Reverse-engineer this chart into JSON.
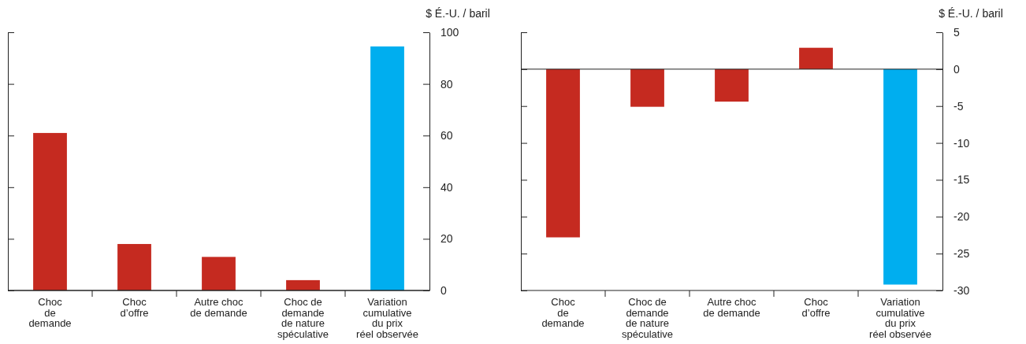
{
  "chart_data": [
    {
      "type": "bar",
      "ylabel": "$ É.-U. / baril",
      "categories": [
        "Choc\nde\ndemande",
        "Choc\nd’offre",
        "Autre choc\nde demande",
        "Choc de\ndemande\nde nature\nspéculative",
        "Variation\ncumulative\ndu prix\nréel observée"
      ],
      "values": [
        61,
        18,
        13,
        4,
        94.5
      ],
      "colors": [
        "#c52a20",
        "#c52a20",
        "#c52a20",
        "#c52a20",
        "#00aeef"
      ],
      "ylim": [
        0,
        100
      ],
      "yticks": [
        0,
        20,
        40,
        60,
        80,
        100
      ]
    },
    {
      "type": "bar",
      "ylabel": "$ É.-U. / baril",
      "categories": [
        "Choc\nde\ndemande",
        "Choc de\ndemande\nde nature\nspéculative",
        "Autre choc\nde demande",
        "Choc\nd’offre",
        "Variation\ncumulative\ndu prix\nréel observée"
      ],
      "values": [
        -22.8,
        -5.1,
        -4.4,
        2.9,
        -29.2
      ],
      "colors": [
        "#c52a20",
        "#c52a20",
        "#c52a20",
        "#c52a20",
        "#00aeef"
      ],
      "ylim": [
        -30,
        5
      ],
      "yticks": [
        -30,
        -25,
        -20,
        -15,
        -10,
        -5,
        0,
        5
      ]
    }
  ]
}
